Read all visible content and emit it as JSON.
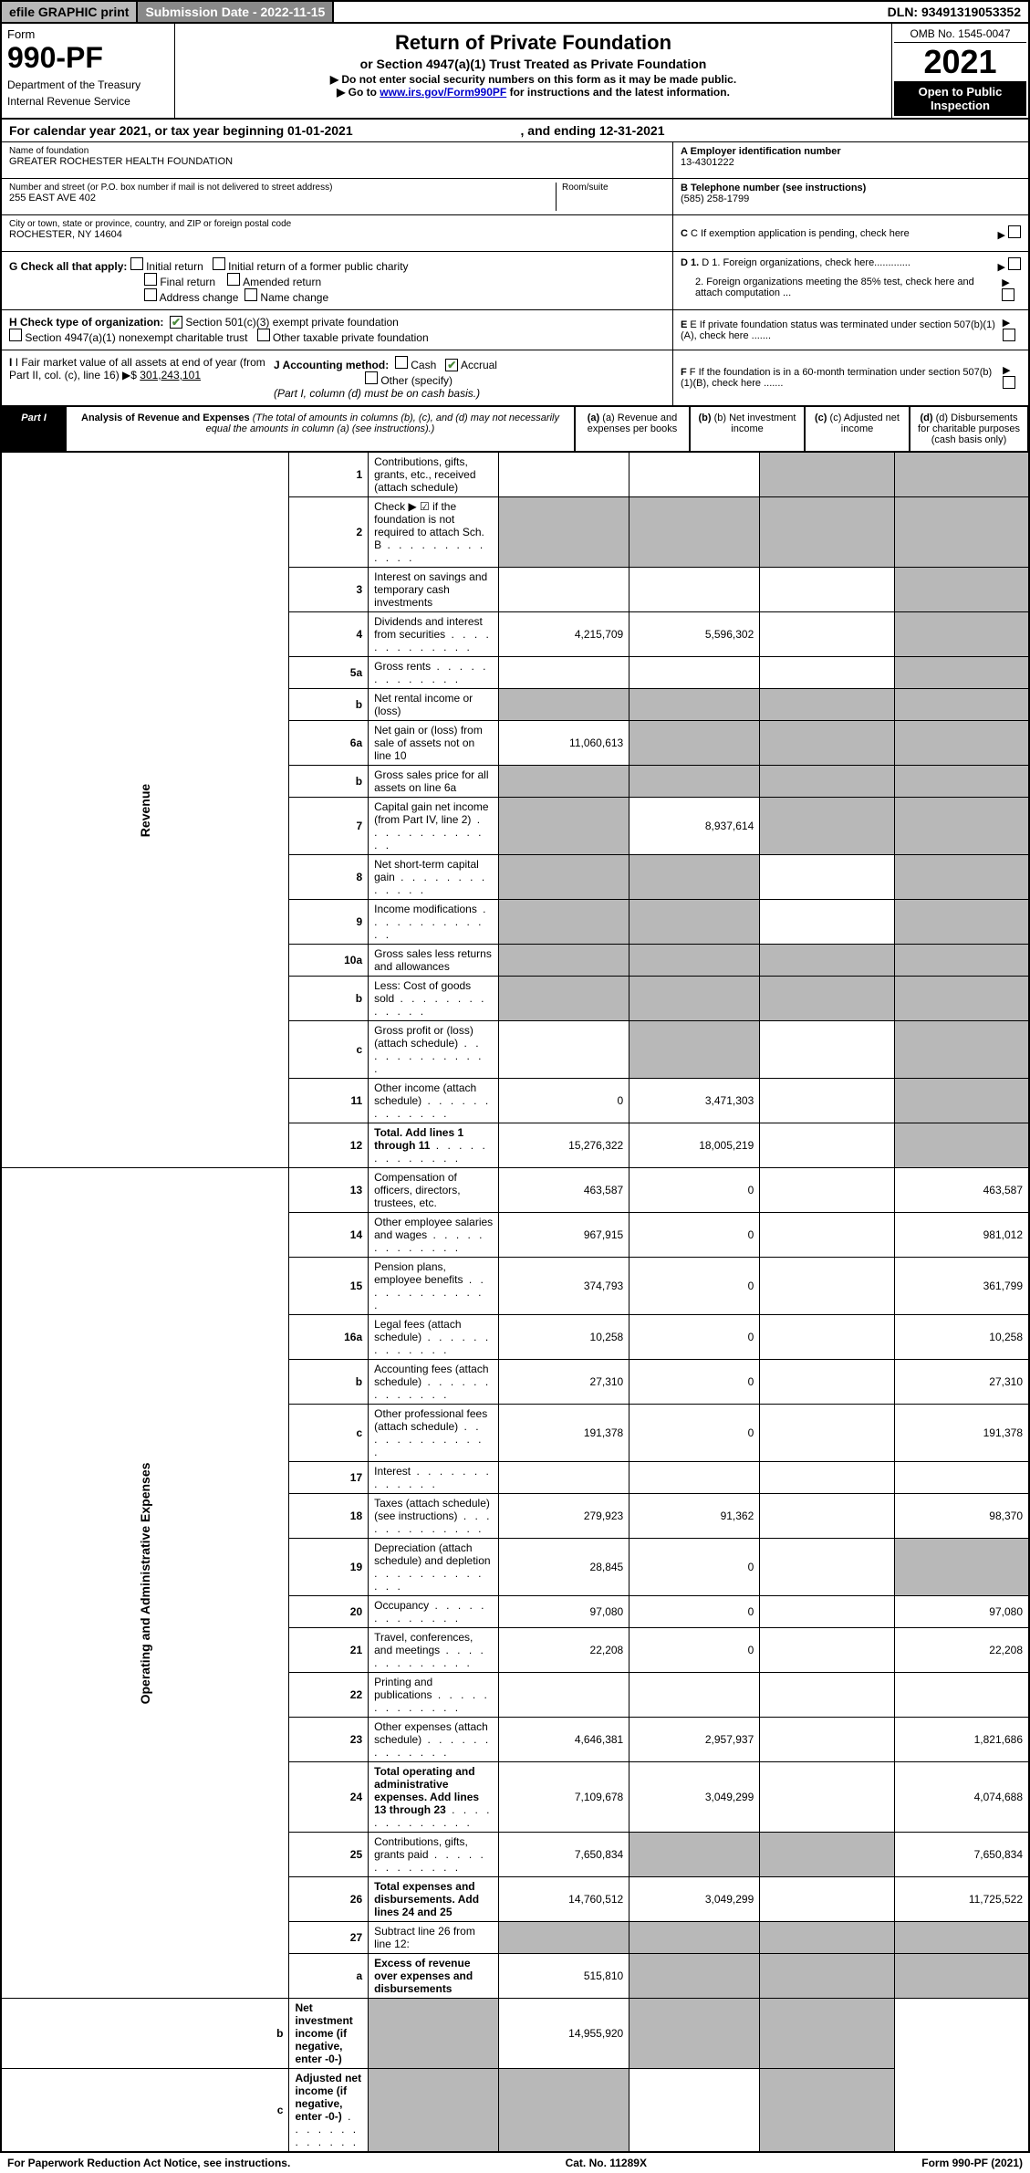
{
  "top": {
    "efile": "efile GRAPHIC print",
    "submission": "Submission Date - 2022-11-15",
    "dln": "DLN: 93491319053352"
  },
  "header": {
    "form_label": "Form",
    "form_no": "990-PF",
    "dept": "Department of the Treasury",
    "irs": "Internal Revenue Service",
    "title": "Return of Private Foundation",
    "subtitle": "or Section 4947(a)(1) Trust Treated as Private Foundation",
    "note1": "▶ Do not enter social security numbers on this form as it may be made public.",
    "note2_pre": "▶ Go to ",
    "note2_link": "www.irs.gov/Form990PF",
    "note2_post": " for instructions and the latest information.",
    "omb": "OMB No. 1545-0047",
    "year": "2021",
    "open": "Open to Public Inspection"
  },
  "cal": {
    "text_pre": "For calendar year 2021, or tax year beginning 01-01-2021",
    "text_mid": ", and ending 12-31-2021"
  },
  "info": {
    "name_label": "Name of foundation",
    "name": "GREATER ROCHESTER HEALTH FOUNDATION",
    "addr_label": "Number and street (or P.O. box number if mail is not delivered to street address)",
    "addr": "255 EAST AVE 402",
    "room_label": "Room/suite",
    "city_label": "City or town, state or province, country, and ZIP or foreign postal code",
    "city": "ROCHESTER, NY  14604",
    "ein_label": "A Employer identification number",
    "ein": "13-4301222",
    "tel_label": "B Telephone number (see instructions)",
    "tel": "(585) 258-1799",
    "c": "C If exemption application is pending, check here",
    "d1": "D 1. Foreign organizations, check here.............",
    "d2": "2. Foreign organizations meeting the 85% test, check here and attach computation ...",
    "e": "E  If private foundation status was terminated under section 507(b)(1)(A), check here .......",
    "f": "F  If the foundation is in a 60-month termination under section 507(b)(1)(B), check here .......",
    "g_label": "G Check all that apply:",
    "g_opts": [
      "Initial return",
      "Initial return of a former public charity",
      "Final return",
      "Amended return",
      "Address change",
      "Name change"
    ],
    "h_label": "H Check type of organization:",
    "h_opts": [
      "Section 501(c)(3) exempt private foundation",
      "Section 4947(a)(1) nonexempt charitable trust",
      "Other taxable private foundation"
    ],
    "i_label": "I Fair market value of all assets at end of year (from Part II, col. (c), line 16) ▶$ ",
    "i_val": "301,243,101",
    "j_label": "J Accounting method:",
    "j_opts": [
      "Cash",
      "Accrual"
    ],
    "j_other": "Other (specify)",
    "j_note": "(Part I, column (d) must be on cash basis.)"
  },
  "part1": {
    "label": "Part I",
    "title": "Analysis of Revenue and Expenses",
    "title_note": " (The total of amounts in columns (b), (c), and (d) may not necessarily equal the amounts in column (a) (see instructions).)",
    "col_a": "(a) Revenue and expenses per books",
    "col_b": "(b) Net investment income",
    "col_c": "(c) Adjusted net income",
    "col_d": "(d) Disbursements for charitable purposes (cash basis only)"
  },
  "sections": {
    "revenue": "Revenue",
    "expenses": "Operating and Administrative Expenses"
  },
  "rows": [
    {
      "n": "1",
      "d": "Contributions, gifts, grants, etc., received (attach schedule)",
      "a": "",
      "b": "",
      "c": "s",
      "dd": "s"
    },
    {
      "n": "2",
      "d": "Check ▶ ☑ if the foundation is not required to attach Sch. B",
      "a": "s",
      "b": "s",
      "c": "s",
      "dd": "s",
      "dots": true
    },
    {
      "n": "3",
      "d": "Interest on savings and temporary cash investments",
      "a": "",
      "b": "",
      "c": "",
      "dd": "s"
    },
    {
      "n": "4",
      "d": "Dividends and interest from securities",
      "a": "4,215,709",
      "b": "5,596,302",
      "c": "",
      "dd": "s",
      "dots": true
    },
    {
      "n": "5a",
      "d": "Gross rents",
      "a": "",
      "b": "",
      "c": "",
      "dd": "s",
      "dots": true
    },
    {
      "n": "b",
      "d": "Net rental income or (loss)",
      "a": "s",
      "b": "s",
      "c": "s",
      "dd": "s"
    },
    {
      "n": "6a",
      "d": "Net gain or (loss) from sale of assets not on line 10",
      "a": "11,060,613",
      "b": "s",
      "c": "s",
      "dd": "s"
    },
    {
      "n": "b",
      "d": "Gross sales price for all assets on line 6a",
      "a": "s",
      "b": "s",
      "c": "s",
      "dd": "s"
    },
    {
      "n": "7",
      "d": "Capital gain net income (from Part IV, line 2)",
      "a": "s",
      "b": "8,937,614",
      "c": "s",
      "dd": "s",
      "dots": true
    },
    {
      "n": "8",
      "d": "Net short-term capital gain",
      "a": "s",
      "b": "s",
      "c": "",
      "dd": "s",
      "dots": true
    },
    {
      "n": "9",
      "d": "Income modifications",
      "a": "s",
      "b": "s",
      "c": "",
      "dd": "s",
      "dots": true
    },
    {
      "n": "10a",
      "d": "Gross sales less returns and allowances",
      "a": "s",
      "b": "s",
      "c": "s",
      "dd": "s"
    },
    {
      "n": "b",
      "d": "Less: Cost of goods sold",
      "a": "s",
      "b": "s",
      "c": "s",
      "dd": "s",
      "dots": true
    },
    {
      "n": "c",
      "d": "Gross profit or (loss) (attach schedule)",
      "a": "",
      "b": "s",
      "c": "",
      "dd": "s",
      "dots": true
    },
    {
      "n": "11",
      "d": "Other income (attach schedule)",
      "a": "0",
      "b": "3,471,303",
      "c": "",
      "dd": "s",
      "dots": true
    },
    {
      "n": "12",
      "d": "Total. Add lines 1 through 11",
      "a": "15,276,322",
      "b": "18,005,219",
      "c": "",
      "dd": "s",
      "dots": true,
      "bold": true
    },
    {
      "n": "13",
      "d": "Compensation of officers, directors, trustees, etc.",
      "a": "463,587",
      "b": "0",
      "c": "",
      "dd": "463,587"
    },
    {
      "n": "14",
      "d": "Other employee salaries and wages",
      "a": "967,915",
      "b": "0",
      "c": "",
      "dd": "981,012",
      "dots": true
    },
    {
      "n": "15",
      "d": "Pension plans, employee benefits",
      "a": "374,793",
      "b": "0",
      "c": "",
      "dd": "361,799",
      "dots": true
    },
    {
      "n": "16a",
      "d": "Legal fees (attach schedule)",
      "a": "10,258",
      "b": "0",
      "c": "",
      "dd": "10,258",
      "dots": true
    },
    {
      "n": "b",
      "d": "Accounting fees (attach schedule)",
      "a": "27,310",
      "b": "0",
      "c": "",
      "dd": "27,310",
      "dots": true
    },
    {
      "n": "c",
      "d": "Other professional fees (attach schedule)",
      "a": "191,378",
      "b": "0",
      "c": "",
      "dd": "191,378",
      "dots": true
    },
    {
      "n": "17",
      "d": "Interest",
      "a": "",
      "b": "",
      "c": "",
      "dd": "",
      "dots": true
    },
    {
      "n": "18",
      "d": "Taxes (attach schedule) (see instructions)",
      "a": "279,923",
      "b": "91,362",
      "c": "",
      "dd": "98,370",
      "dots": true
    },
    {
      "n": "19",
      "d": "Depreciation (attach schedule) and depletion",
      "a": "28,845",
      "b": "0",
      "c": "",
      "dd": "s",
      "dots": true
    },
    {
      "n": "20",
      "d": "Occupancy",
      "a": "97,080",
      "b": "0",
      "c": "",
      "dd": "97,080",
      "dots": true
    },
    {
      "n": "21",
      "d": "Travel, conferences, and meetings",
      "a": "22,208",
      "b": "0",
      "c": "",
      "dd": "22,208",
      "dots": true
    },
    {
      "n": "22",
      "d": "Printing and publications",
      "a": "",
      "b": "",
      "c": "",
      "dd": "",
      "dots": true
    },
    {
      "n": "23",
      "d": "Other expenses (attach schedule)",
      "a": "4,646,381",
      "b": "2,957,937",
      "c": "",
      "dd": "1,821,686",
      "dots": true
    },
    {
      "n": "24",
      "d": "Total operating and administrative expenses. Add lines 13 through 23",
      "a": "7,109,678",
      "b": "3,049,299",
      "c": "",
      "dd": "4,074,688",
      "dots": true,
      "bold": true
    },
    {
      "n": "25",
      "d": "Contributions, gifts, grants paid",
      "a": "7,650,834",
      "b": "s",
      "c": "s",
      "dd": "7,650,834",
      "dots": true
    },
    {
      "n": "26",
      "d": "Total expenses and disbursements. Add lines 24 and 25",
      "a": "14,760,512",
      "b": "3,049,299",
      "c": "",
      "dd": "11,725,522",
      "bold": true
    },
    {
      "n": "27",
      "d": "Subtract line 26 from line 12:",
      "a": "s",
      "b": "s",
      "c": "s",
      "dd": "s"
    },
    {
      "n": "a",
      "d": "Excess of revenue over expenses and disbursements",
      "a": "515,810",
      "b": "s",
      "c": "s",
      "dd": "s",
      "bold": true
    },
    {
      "n": "b",
      "d": "Net investment income (if negative, enter -0-)",
      "a": "s",
      "b": "14,955,920",
      "c": "s",
      "dd": "s",
      "bold": true
    },
    {
      "n": "c",
      "d": "Adjusted net income (if negative, enter -0-)",
      "a": "s",
      "b": "s",
      "c": "",
      "dd": "s",
      "dots": true,
      "bold": true
    }
  ],
  "footer": {
    "left": "For Paperwork Reduction Act Notice, see instructions.",
    "mid": "Cat. No. 11289X",
    "right": "Form 990-PF (2021)"
  },
  "colors": {
    "shade": "#b8b8b8",
    "darkgray": "#898989",
    "link": "#0000cc",
    "check": "#4a8a3a"
  }
}
